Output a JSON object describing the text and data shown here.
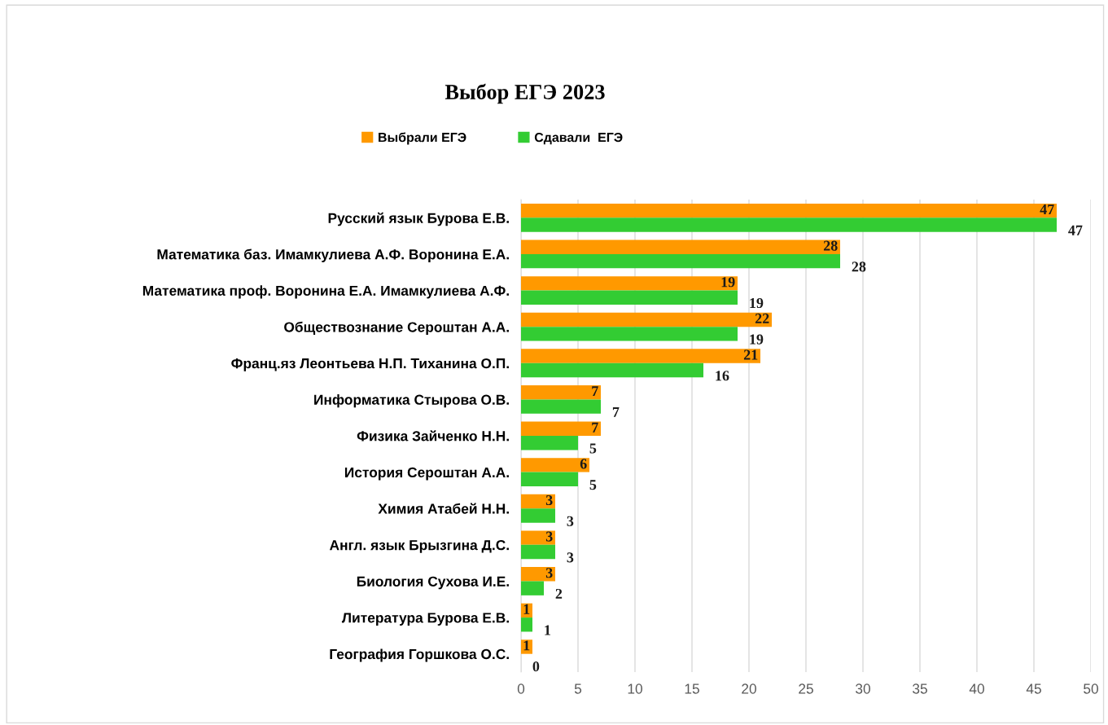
{
  "chart_data": {
    "type": "bar",
    "orientation": "horizontal",
    "title": "Выбор ЕГЭ 2023",
    "categories": [
      "Русский язык Бурова Е.В.",
      "Математика баз. Имамкулиева А.Ф. Воронина Е.А.",
      "Математика проф. Воронина Е.А. Имамкулиева А.Ф.",
      "Обществознание Сероштан А.А.",
      "Франц.яз Леонтьева Н.П. Тиханина О.П.",
      "Информатика Стырова О.В.",
      "Физика Зайченко Н.Н.",
      "История Сероштан А.А.",
      "Химия Атабей Н.Н.",
      "Англ. язык Брызгина Д.С.",
      "Биология Сухова И.Е.",
      "Литература Бурова Е.В.",
      "География Горшкова О.С."
    ],
    "series": [
      {
        "name": "Выбрали ЕГЭ",
        "color": "#ff9900",
        "values": [
          47,
          28,
          19,
          22,
          21,
          7,
          7,
          6,
          3,
          3,
          3,
          1,
          1
        ]
      },
      {
        "name": "Сдавали  ЕГЭ",
        "color": "#33cc33",
        "values": [
          47,
          28,
          19,
          19,
          16,
          7,
          5,
          5,
          3,
          3,
          2,
          1,
          0
        ]
      }
    ],
    "xlim": [
      0,
      50
    ],
    "xticks": [
      0,
      5,
      10,
      15,
      20,
      25,
      30,
      35,
      40,
      45,
      50
    ],
    "grid": "x",
    "legend": "top",
    "data_labels": true
  }
}
